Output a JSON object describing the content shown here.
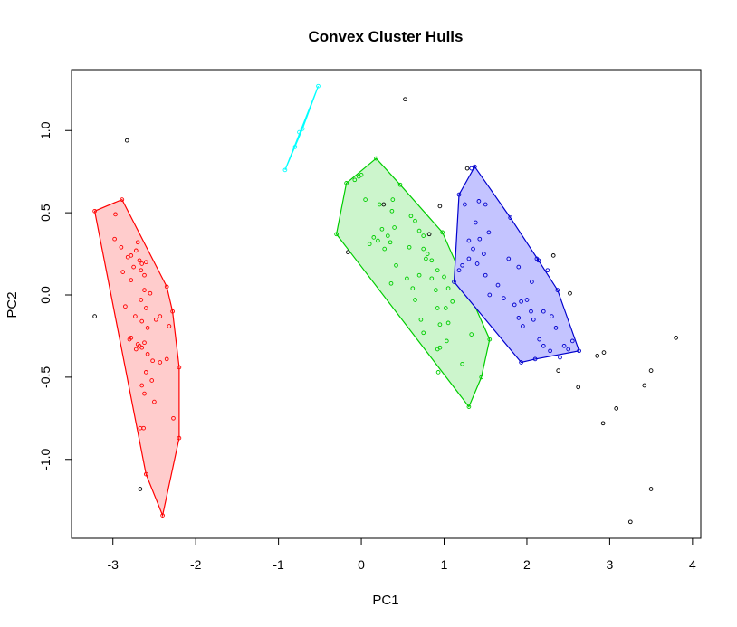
{
  "chart_data": {
    "type": "scatter",
    "title": "Convex Cluster Hulls",
    "xlabel": "PC1",
    "ylabel": "PC2",
    "xlim": [
      -3.5,
      4.1
    ],
    "ylim": [
      -1.48,
      1.37
    ],
    "x_ticks": [
      -3,
      -2,
      -1,
      0,
      1,
      2,
      3,
      4
    ],
    "x_tick_labels": [
      "-3",
      "-2",
      "-1",
      "0",
      "1",
      "2",
      "3",
      "4"
    ],
    "y_ticks": [
      -1.0,
      -0.5,
      0.0,
      0.5,
      1.0
    ],
    "y_tick_labels": [
      "-1.0",
      "-0.5",
      "0.0",
      "0.5",
      "1.0"
    ],
    "grid": false,
    "clusters": [
      {
        "color": "#ff0000",
        "fill": "#ffcccc",
        "hull": [
          [
            -3.22,
            0.51
          ],
          [
            -2.89,
            0.58
          ],
          [
            -2.35,
            0.05
          ],
          [
            -2.28,
            -0.1
          ],
          [
            -2.2,
            -0.44
          ],
          [
            -2.2,
            -0.87
          ],
          [
            -2.4,
            -1.34
          ],
          [
            -2.6,
            -1.09
          ],
          [
            -3.22,
            0.51
          ]
        ],
        "points": [
          [
            -3.22,
            0.51
          ],
          [
            -2.89,
            0.58
          ],
          [
            -2.35,
            0.05
          ],
          [
            -2.28,
            -0.1
          ],
          [
            -2.2,
            -0.44
          ],
          [
            -2.2,
            -0.87
          ],
          [
            -2.4,
            -1.34
          ],
          [
            -2.6,
            -1.09
          ],
          [
            -2.97,
            0.49
          ],
          [
            -2.98,
            0.34
          ],
          [
            -2.9,
            0.29
          ],
          [
            -2.88,
            0.14
          ],
          [
            -2.82,
            0.23
          ],
          [
            -2.78,
            0.24
          ],
          [
            -2.7,
            0.32
          ],
          [
            -2.72,
            0.27
          ],
          [
            -2.68,
            0.21
          ],
          [
            -2.65,
            0.19
          ],
          [
            -2.6,
            0.2
          ],
          [
            -2.75,
            0.17
          ],
          [
            -2.66,
            0.15
          ],
          [
            -2.62,
            0.12
          ],
          [
            -2.78,
            0.09
          ],
          [
            -2.62,
            0.03
          ],
          [
            -2.55,
            0.01
          ],
          [
            -2.66,
            -0.03
          ],
          [
            -2.6,
            -0.08
          ],
          [
            -2.85,
            -0.07
          ],
          [
            -2.73,
            -0.13
          ],
          [
            -2.65,
            -0.16
          ],
          [
            -2.58,
            -0.2
          ],
          [
            -2.48,
            -0.15
          ],
          [
            -2.43,
            -0.13
          ],
          [
            -2.32,
            -0.19
          ],
          [
            -2.8,
            -0.27
          ],
          [
            -2.78,
            -0.26
          ],
          [
            -2.7,
            -0.3
          ],
          [
            -2.62,
            -0.29
          ],
          [
            -2.72,
            -0.33
          ],
          [
            -2.65,
            -0.32
          ],
          [
            -2.68,
            -0.31
          ],
          [
            -2.58,
            -0.36
          ],
          [
            -2.52,
            -0.4
          ],
          [
            -2.43,
            -0.41
          ],
          [
            -2.35,
            -0.39
          ],
          [
            -2.6,
            -0.47
          ],
          [
            -2.53,
            -0.52
          ],
          [
            -2.65,
            -0.55
          ],
          [
            -2.62,
            -0.6
          ],
          [
            -2.5,
            -0.65
          ],
          [
            -2.27,
            -0.75
          ],
          [
            -2.67,
            -0.81
          ],
          [
            -2.63,
            -0.81
          ]
        ]
      },
      {
        "color": "#00ffff",
        "fill": "#ccffff",
        "hull": [
          [
            -0.92,
            0.76
          ],
          [
            -0.52,
            1.27
          ],
          [
            -0.71,
            1.01
          ],
          [
            -0.92,
            0.76
          ]
        ],
        "points": [
          [
            -0.92,
            0.76
          ],
          [
            -0.52,
            1.27
          ],
          [
            -0.71,
            1.01
          ],
          [
            -0.75,
            0.99
          ],
          [
            -0.8,
            0.9
          ]
        ]
      },
      {
        "color": "#00cd00",
        "fill": "#ccf5cc",
        "hull": [
          [
            -0.3,
            0.37
          ],
          [
            -0.18,
            0.68
          ],
          [
            0.18,
            0.83
          ],
          [
            0.47,
            0.67
          ],
          [
            0.98,
            0.38
          ],
          [
            1.55,
            -0.27
          ],
          [
            1.45,
            -0.5
          ],
          [
            1.3,
            -0.68
          ],
          [
            -0.3,
            0.37
          ]
        ],
        "points": [
          [
            -0.3,
            0.37
          ],
          [
            -0.18,
            0.68
          ],
          [
            0.18,
            0.83
          ],
          [
            0.47,
            0.67
          ],
          [
            0.98,
            0.38
          ],
          [
            1.55,
            -0.27
          ],
          [
            1.45,
            -0.5
          ],
          [
            1.3,
            -0.68
          ],
          [
            -0.08,
            0.7
          ],
          [
            -0.03,
            0.72
          ],
          [
            0.0,
            0.73
          ],
          [
            0.05,
            0.58
          ],
          [
            0.22,
            0.55
          ],
          [
            0.38,
            0.58
          ],
          [
            0.37,
            0.51
          ],
          [
            0.6,
            0.48
          ],
          [
            0.4,
            0.41
          ],
          [
            0.65,
            0.45
          ],
          [
            0.7,
            0.39
          ],
          [
            0.75,
            0.36
          ],
          [
            0.25,
            0.4
          ],
          [
            0.2,
            0.33
          ],
          [
            0.32,
            0.36
          ],
          [
            0.35,
            0.32
          ],
          [
            0.15,
            0.35
          ],
          [
            0.1,
            0.31
          ],
          [
            0.28,
            0.28
          ],
          [
            0.58,
            0.29
          ],
          [
            0.75,
            0.28
          ],
          [
            0.8,
            0.25
          ],
          [
            0.78,
            0.22
          ],
          [
            0.85,
            0.21
          ],
          [
            0.7,
            0.12
          ],
          [
            0.42,
            0.18
          ],
          [
            0.55,
            0.1
          ],
          [
            0.85,
            0.1
          ],
          [
            0.92,
            0.15
          ],
          [
            1.0,
            0.11
          ],
          [
            1.05,
            0.04
          ],
          [
            0.62,
            0.04
          ],
          [
            0.36,
            0.07
          ],
          [
            0.9,
            0.03
          ],
          [
            0.65,
            -0.03
          ],
          [
            1.1,
            -0.04
          ],
          [
            0.92,
            -0.08
          ],
          [
            1.02,
            -0.08
          ],
          [
            1.05,
            -0.17
          ],
          [
            0.72,
            -0.15
          ],
          [
            0.95,
            -0.18
          ],
          [
            0.75,
            -0.23
          ],
          [
            1.03,
            -0.28
          ],
          [
            1.33,
            -0.24
          ],
          [
            0.95,
            -0.32
          ],
          [
            0.92,
            -0.33
          ],
          [
            1.22,
            -0.42
          ],
          [
            0.93,
            -0.47
          ]
        ]
      },
      {
        "color": "#0000cd",
        "fill": "#c4c4ff",
        "hull": [
          [
            1.18,
            0.61
          ],
          [
            1.37,
            0.78
          ],
          [
            1.8,
            0.47
          ],
          [
            2.14,
            0.21
          ],
          [
            2.37,
            0.03
          ],
          [
            2.63,
            -0.34
          ],
          [
            2.1,
            -0.39
          ],
          [
            1.93,
            -0.41
          ],
          [
            1.12,
            0.08
          ],
          [
            1.18,
            0.61
          ]
        ],
        "points": [
          [
            1.18,
            0.61
          ],
          [
            1.37,
            0.78
          ],
          [
            1.8,
            0.47
          ],
          [
            2.14,
            0.21
          ],
          [
            2.37,
            0.03
          ],
          [
            2.63,
            -0.34
          ],
          [
            2.1,
            -0.39
          ],
          [
            1.93,
            -0.41
          ],
          [
            1.12,
            0.08
          ],
          [
            1.33,
            0.77
          ],
          [
            1.42,
            0.57
          ],
          [
            1.25,
            0.55
          ],
          [
            1.5,
            0.55
          ],
          [
            1.38,
            0.44
          ],
          [
            1.54,
            0.38
          ],
          [
            1.43,
            0.34
          ],
          [
            1.3,
            0.33
          ],
          [
            1.35,
            0.28
          ],
          [
            1.48,
            0.25
          ],
          [
            1.3,
            0.22
          ],
          [
            1.4,
            0.19
          ],
          [
            1.22,
            0.18
          ],
          [
            1.18,
            0.15
          ],
          [
            1.5,
            0.12
          ],
          [
            1.78,
            0.22
          ],
          [
            1.9,
            0.17
          ],
          [
            2.12,
            0.22
          ],
          [
            2.25,
            0.15
          ],
          [
            2.06,
            0.08
          ],
          [
            1.65,
            0.06
          ],
          [
            1.55,
            0.0
          ],
          [
            1.72,
            -0.02
          ],
          [
            2.0,
            -0.03
          ],
          [
            1.85,
            -0.06
          ],
          [
            1.93,
            -0.04
          ],
          [
            1.9,
            -0.14
          ],
          [
            2.05,
            -0.1
          ],
          [
            2.2,
            -0.1
          ],
          [
            2.3,
            -0.13
          ],
          [
            2.08,
            -0.15
          ],
          [
            1.95,
            -0.19
          ],
          [
            2.35,
            -0.2
          ],
          [
            2.15,
            -0.27
          ],
          [
            2.2,
            -0.31
          ],
          [
            2.55,
            -0.28
          ],
          [
            2.45,
            -0.31
          ],
          [
            2.28,
            -0.34
          ],
          [
            2.4,
            -0.38
          ],
          [
            2.5,
            -0.33
          ]
        ]
      },
      {
        "color": "#000000",
        "fill": "none",
        "hull": [],
        "points": [
          [
            0.53,
            1.19
          ],
          [
            -2.83,
            0.94
          ],
          [
            -3.22,
            -0.13
          ],
          [
            -2.67,
            -1.18
          ],
          [
            0.27,
            0.55
          ],
          [
            -0.16,
            0.26
          ],
          [
            0.95,
            0.54
          ],
          [
            0.82,
            0.37
          ],
          [
            1.28,
            0.77
          ],
          [
            2.32,
            0.24
          ],
          [
            2.52,
            0.01
          ],
          [
            2.38,
            -0.46
          ],
          [
            2.62,
            -0.56
          ],
          [
            2.85,
            -0.37
          ],
          [
            2.93,
            -0.35
          ],
          [
            3.08,
            -0.69
          ],
          [
            2.92,
            -0.78
          ],
          [
            3.42,
            -0.55
          ],
          [
            3.5,
            -0.46
          ],
          [
            3.8,
            -0.26
          ],
          [
            3.25,
            -1.38
          ],
          [
            3.5,
            -1.18
          ]
        ]
      }
    ]
  }
}
